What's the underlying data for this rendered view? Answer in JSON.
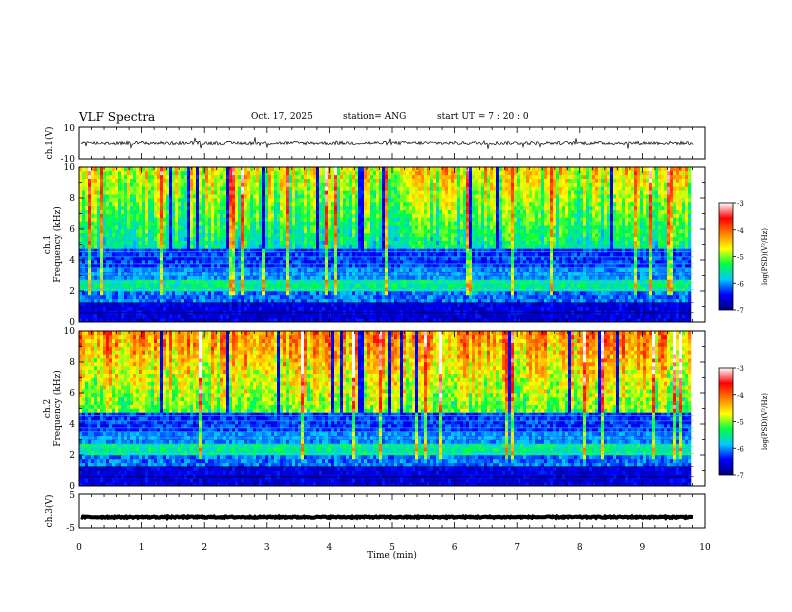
{
  "header": {
    "title": "VLF Spectra",
    "date": "Oct. 17, 2025",
    "station": "station= ANG",
    "start": "start  UT =   7 : 20 : 0"
  },
  "chart_data": [
    {
      "type": "line",
      "title": "",
      "ylabel": "ch.1(V)",
      "ylim": [
        -10,
        10
      ],
      "y_ticks": [
        "10",
        "-10"
      ],
      "xlim": [
        0,
        10
      ],
      "baseline": 0,
      "color": "#000000"
    },
    {
      "type": "heatmap",
      "ylabel_line1": "ch.1",
      "ylabel_line2": "Frequency (kHz)",
      "ylim": [
        0,
        10
      ],
      "y_ticks": [
        "0",
        "2",
        "4",
        "6",
        "8",
        "10"
      ],
      "xlim": [
        0,
        10
      ],
      "colorbar": {
        "label": "log(PSD)(V²/Hz)",
        "range": [
          -7,
          -3
        ],
        "ticks": [
          "-3",
          "-4",
          "-5",
          "-6",
          "-7"
        ],
        "colors": [
          "#00007a",
          "#0000ff",
          "#00c8ff",
          "#00ff40",
          "#ffff00",
          "#ff8000",
          "#ff0000",
          "#ffffff"
        ]
      }
    },
    {
      "type": "heatmap",
      "ylabel_line1": "ch.2",
      "ylabel_line2": "Frequency (kHz)",
      "ylim": [
        0,
        10
      ],
      "y_ticks": [
        "0",
        "2",
        "4",
        "6",
        "8",
        "10"
      ],
      "xlim": [
        0,
        10
      ],
      "colorbar": {
        "label": "log(PSD)(V²/Hz)",
        "range": [
          -7,
          -3
        ],
        "ticks": [
          "-3",
          "-4",
          "-5",
          "-6",
          "-7"
        ],
        "colors": [
          "#00007a",
          "#0000ff",
          "#00c8ff",
          "#00ff40",
          "#ffff00",
          "#ff8000",
          "#ff0000",
          "#ffffff"
        ]
      }
    },
    {
      "type": "line",
      "title": "",
      "ylabel": "ch.3(V)",
      "ylim": [
        -5,
        5
      ],
      "y_ticks": [
        "5",
        "-5"
      ],
      "xlim": [
        0,
        10
      ],
      "baseline": -1.8,
      "color": "#000000",
      "xlabel": "Time (min)",
      "x_ticks": [
        "0",
        "1",
        "2",
        "3",
        "4",
        "5",
        "6",
        "7",
        "8",
        "9",
        "10"
      ]
    }
  ]
}
